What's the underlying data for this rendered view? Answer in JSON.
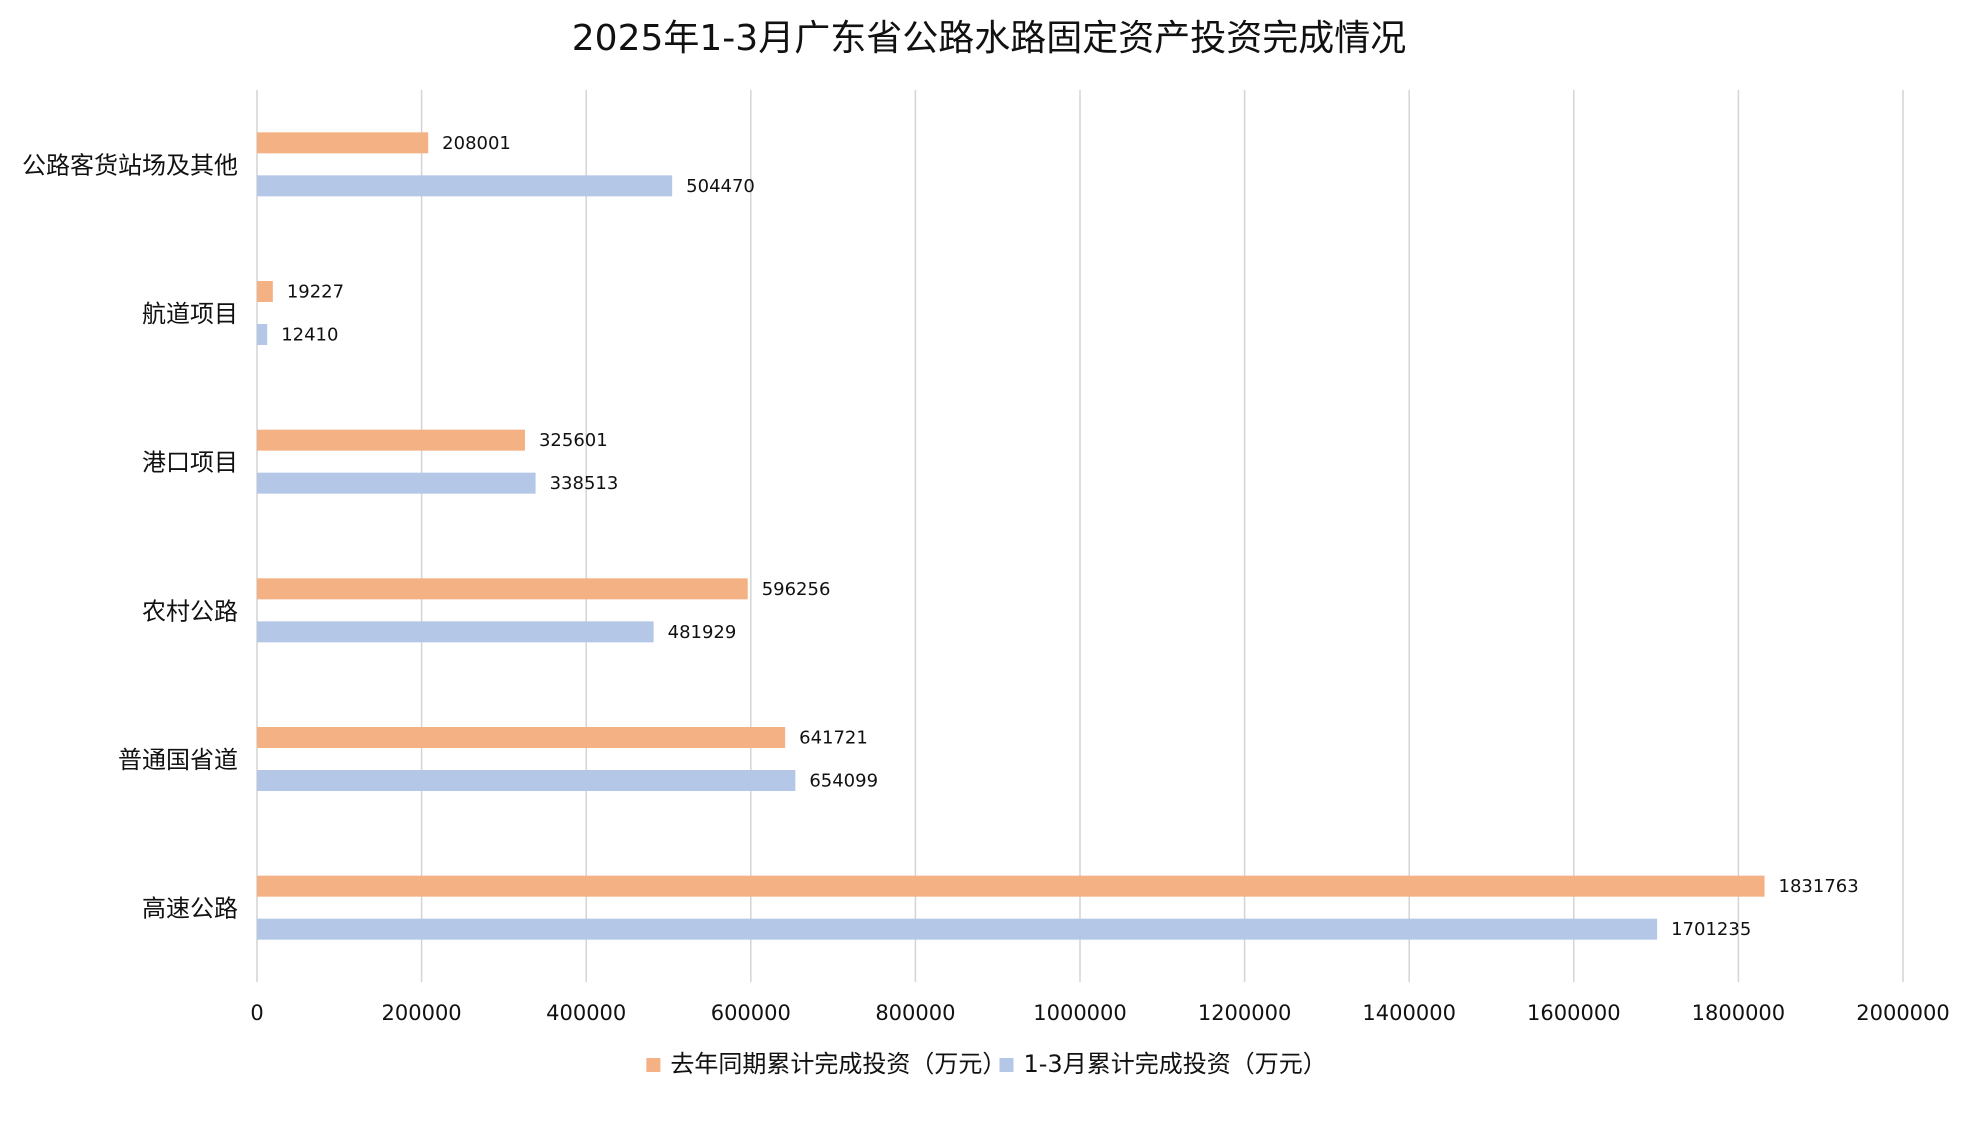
{
  "chart_data": {
    "type": "bar",
    "orientation": "horizontal",
    "title": "2025年1-3月广东省公路水路固定资产投资完成情况",
    "xlabel": "",
    "ylabel": "",
    "xlim": [
      0,
      2000000
    ],
    "x_ticks": [
      "0",
      "200000",
      "400000",
      "600000",
      "800000",
      "1000000",
      "1200000",
      "1400000",
      "1600000",
      "1800000",
      "2000000"
    ],
    "grid": "vertical",
    "legend_position": "bottom",
    "categories": [
      "公路客货站场及其他",
      "航道项目",
      "港口项目",
      "农村公路",
      "普通国省道",
      "高速公路"
    ],
    "series": [
      {
        "name": "去年同期累计完成投资（万元）",
        "color": "#f4b183",
        "values": [
          208001,
          19227,
          325601,
          596256,
          641721,
          1831763
        ],
        "labels": [
          "208001",
          "19227",
          "325601",
          "596256",
          "641721",
          "1831763"
        ]
      },
      {
        "name": "1-3月累计完成投资（万元）",
        "color": "#b4c7e7",
        "values": [
          504470,
          12410,
          338513,
          481929,
          654099,
          1701235
        ],
        "labels": [
          "504470",
          "12410",
          "338513",
          "481929",
          "654099",
          "1701235"
        ]
      }
    ]
  }
}
